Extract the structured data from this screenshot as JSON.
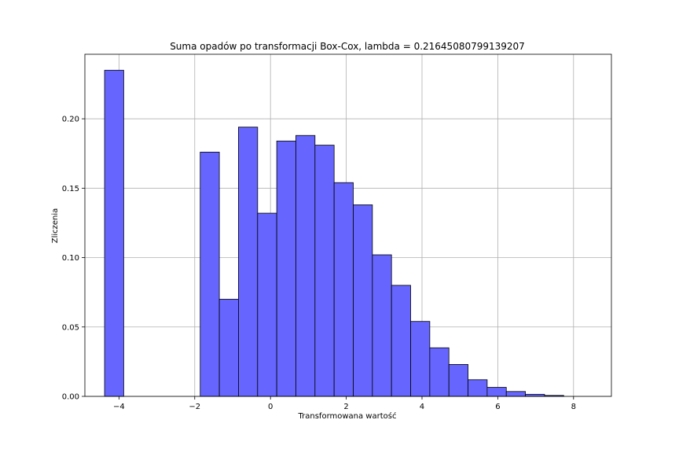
{
  "chart_data": {
    "type": "bar",
    "title": "Suma opadów po transformacji Box-Cox, lambda = 0.21645080799139207",
    "xlabel": "Transformowana wartość",
    "ylabel": "Zliczenia",
    "xlim": [
      -4.9,
      9.0
    ],
    "ylim": [
      0,
      0.2465
    ],
    "xticks": [
      -4,
      -2,
      0,
      2,
      4,
      6,
      8
    ],
    "xtick_labels": [
      "−4",
      "−2",
      "0",
      "2",
      "4",
      "6",
      "8"
    ],
    "yticks": [
      0.0,
      0.05,
      0.1,
      0.15,
      0.2
    ],
    "ytick_labels": [
      "0.00",
      "0.05",
      "0.10",
      "0.15",
      "0.20"
    ],
    "grid": true,
    "bar_color": "#6666ff",
    "bar_edge_color": "#000000",
    "bin_start": -4.38,
    "bin_width": 0.505,
    "values": [
      0.235,
      0,
      0,
      0,
      0,
      0.176,
      0.07,
      0.194,
      0.132,
      0.184,
      0.188,
      0.181,
      0.154,
      0.138,
      0.102,
      0.08,
      0.054,
      0.035,
      0.023,
      0.012,
      0.0065,
      0.0035,
      0.0015,
      0.0007
    ]
  }
}
